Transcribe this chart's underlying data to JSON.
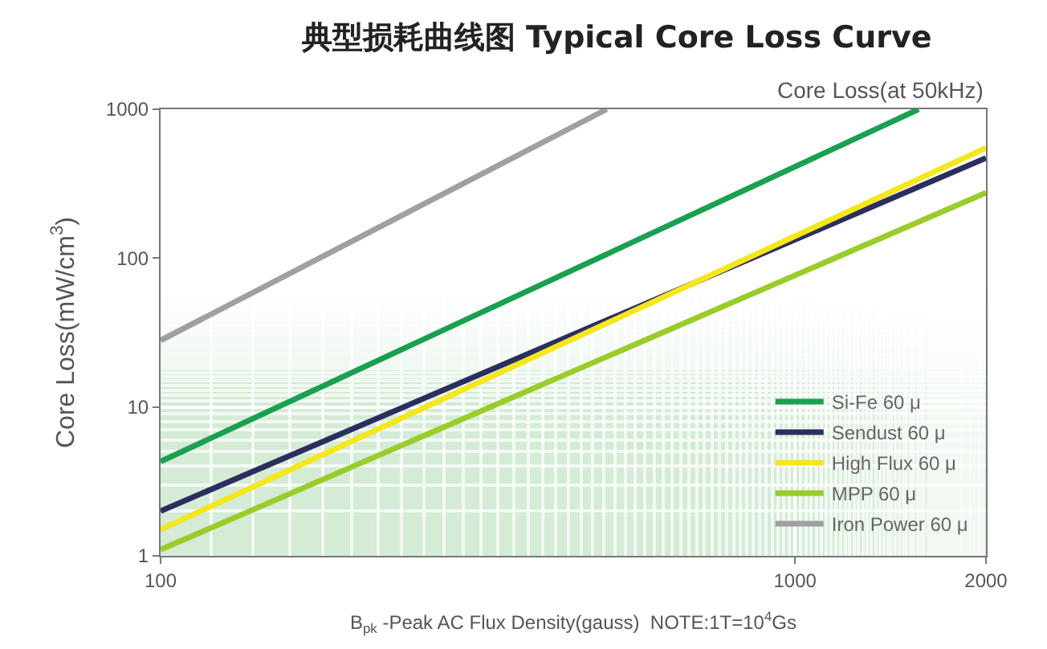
{
  "chart_data": {
    "type": "line",
    "title": "典型损耗曲线图 Typical Core Loss Curve",
    "subtitle": "Core Loss(at 50kHz)",
    "xlabel": "B$_{pk}$ -Peak AC Flux Density(gauss)  NOTE:1T=10$^{4}$Gs",
    "ylabel": "Core Loss(mW/cm$^{3}$)",
    "log": "xy",
    "xlim": [
      100,
      2000
    ],
    "xticks": [
      100,
      1000,
      2000
    ],
    "ylim": [
      1,
      1000
    ],
    "yticks": [
      1,
      10,
      100,
      1000
    ],
    "grid": true,
    "legend": "bottom right",
    "line_style": "solid",
    "marker": "none",
    "series": [
      {
        "name": "Si-Fe 60 μ",
        "color": "#1aa050",
        "x": [
          100,
          1566
        ],
        "values": [
          4.3,
          1000
        ]
      },
      {
        "name": "Sendust 60 μ",
        "color": "#2b2f5e",
        "x": [
          100,
          2000
        ],
        "values": [
          2.0,
          470
        ]
      },
      {
        "name": "High Flux 60 μ",
        "color": "#f5e61e",
        "x": [
          100,
          2000
        ],
        "values": [
          1.5,
          550
        ]
      },
      {
        "name": "MPP 60 μ",
        "color": "#9acc2a",
        "x": [
          100,
          2000
        ],
        "values": [
          1.1,
          275
        ]
      },
      {
        "name": "Iron Power 60 μ",
        "color": "#a0a0a0",
        "x": [
          100,
          505
        ],
        "values": [
          28,
          1000
        ]
      }
    ]
  }
}
